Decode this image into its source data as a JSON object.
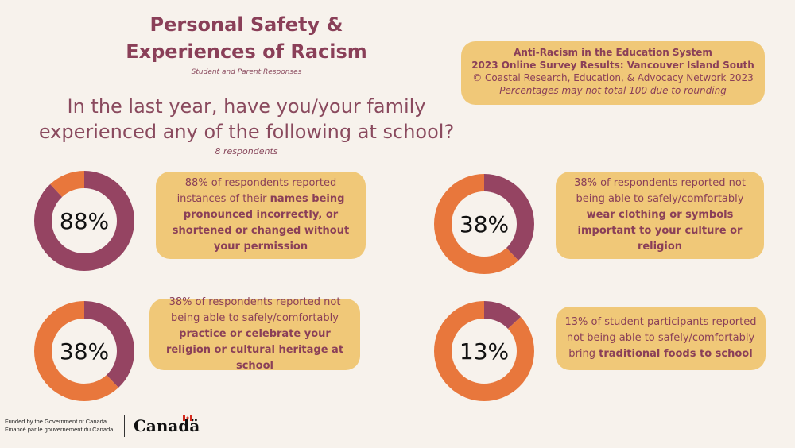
{
  "header": {
    "title_line1": "Personal Safety &",
    "title_line2": "Experiences of Racism",
    "subtitle": "Student and Parent Responses"
  },
  "question": {
    "line1": "In the last year, have you/your family",
    "line2": "experienced any of the following at school?",
    "respondents": "8 respondents"
  },
  "infobox": {
    "line1": "Anti-Racism in the Education System",
    "line2": "2023 Online Survey Results: Vancouver Island South",
    "line3": "© Coastal Research, Education, & Advocacy Network 2023",
    "line4": "Percentages may not total 100 due to rounding"
  },
  "colors": {
    "plum": "#954462",
    "orange": "#e8773c",
    "card": "#f0c878",
    "background": "#f7f2ec"
  },
  "chart_data": [
    {
      "type": "pie",
      "label": "88%",
      "values": [
        88,
        12
      ],
      "caption": {
        "pre": "88% of respondents reported instances of their ",
        "bold": "names being pronounced incorrectly, or shortened or changed without your permission",
        "post": ""
      }
    },
    {
      "type": "pie",
      "label": "38%",
      "values": [
        38,
        62
      ],
      "caption": {
        "pre": "38% of respondents reported not being able to safely/comfortably ",
        "bold": "wear clothing or symbols important to your culture or religion",
        "post": ""
      }
    },
    {
      "type": "pie",
      "label": "38%",
      "values": [
        38,
        62
      ],
      "caption": {
        "pre": "38% of respondents reported not being able to safely/comfortably ",
        "bold": "practice or celebrate your religion or cultural heritage at school",
        "post": ""
      }
    },
    {
      "type": "pie",
      "label": "13%",
      "values": [
        13,
        87
      ],
      "caption": {
        "pre": "13% of student participants reported not being able to safely/comfortably bring ",
        "bold": "traditional foods to school",
        "post": ""
      }
    }
  ],
  "footer": {
    "funded_en": "Funded by the Government of Canada",
    "funded_fr": "Financé par le gouvernement du Canada",
    "wordmark": "Canadä"
  }
}
